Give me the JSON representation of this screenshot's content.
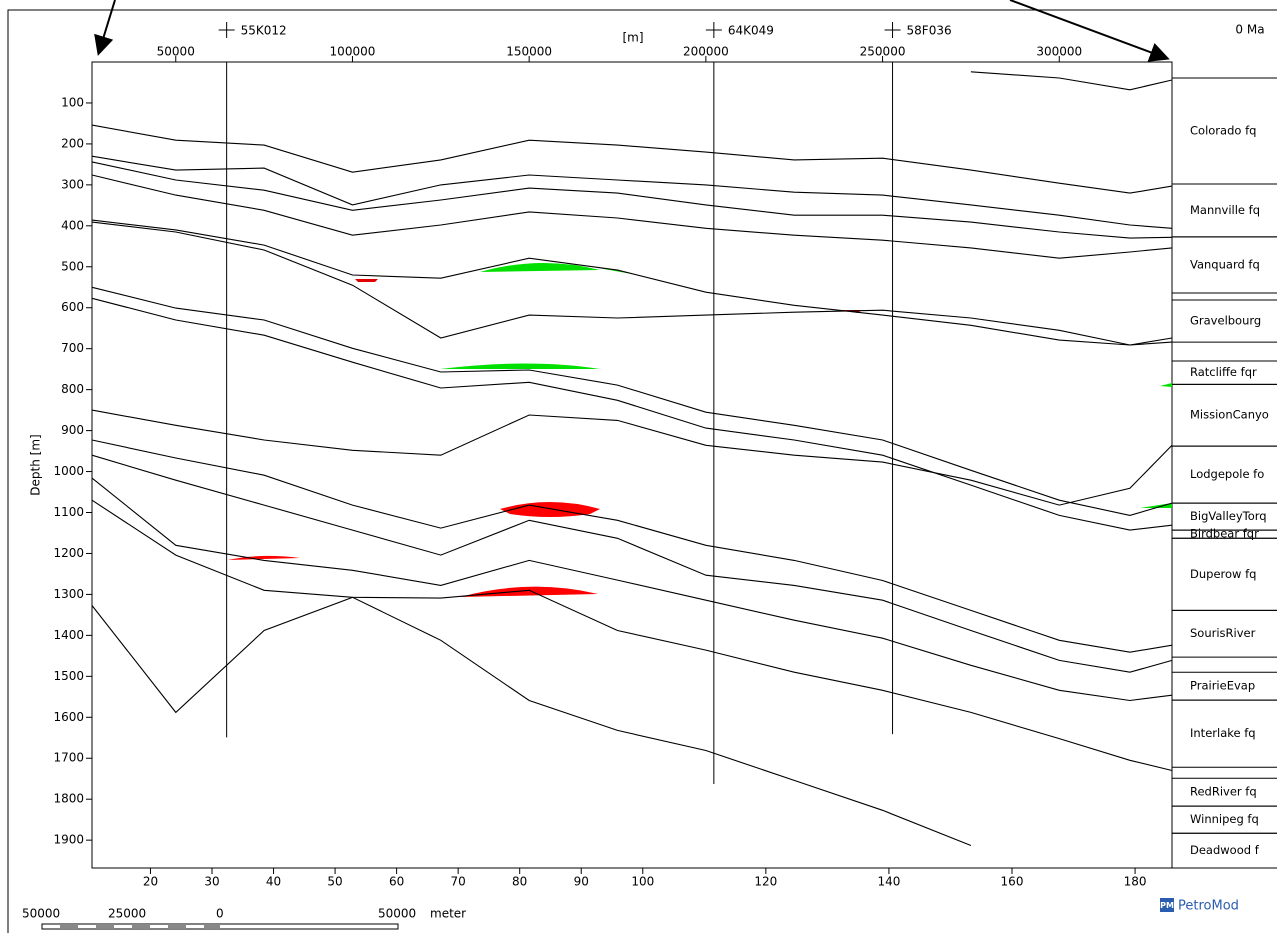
{
  "chart_data": {
    "type": "cross-section",
    "x_label": "[m]",
    "y_label": "Depth [m]",
    "age_label": "0 Ma",
    "xlim": [
      26300,
      331900
    ],
    "xticks": [
      50000,
      100000,
      150000,
      200000,
      250000,
      300000
    ],
    "x2lim": [
      10.5,
      186
    ],
    "x2ticks": [
      20,
      30,
      40,
      50,
      60,
      70,
      80,
      90,
      100,
      120,
      140,
      160,
      180
    ],
    "ylim": [
      0,
      1968
    ],
    "yticks": [
      100,
      200,
      300,
      400,
      500,
      600,
      700,
      800,
      900,
      1000,
      1100,
      1200,
      1300,
      1400,
      1500,
      1600,
      1700,
      1800,
      1900
    ],
    "wells": [
      {
        "name": "55K012",
        "x": 64400,
        "depth": 1649
      },
      {
        "name": "64K049",
        "x": 202260,
        "depth": 1763
      },
      {
        "name": "58F036",
        "x": 252825,
        "depth": 1641
      }
    ],
    "x": [
      26300,
      50000,
      75000,
      100000,
      125000,
      150000,
      175000,
      200000,
      225000,
      250000,
      275000,
      300000,
      320000,
      331900
    ],
    "horizons": [
      {
        "values": [
          null,
          null,
          null,
          null,
          null,
          null,
          null,
          null,
          null,
          null,
          24,
          39,
          68,
          44
        ]
      },
      {
        "values": [
          154,
          191,
          203,
          269,
          239,
          191,
          203,
          220,
          239,
          235,
          264,
          296,
          320,
          303
        ]
      },
      {
        "values": [
          230,
          264,
          259,
          349,
          300,
          276,
          288,
          300,
          318,
          325,
          349,
          374,
          398,
          406
        ]
      },
      {
        "values": [
          244,
          288,
          313,
          362,
          337,
          308,
          320,
          349,
          374,
          374,
          391,
          415,
          430,
          428
        ]
      },
      {
        "values": [
          276,
          325,
          362,
          423,
          398,
          366,
          381,
          406,
          423,
          435,
          454,
          479,
          464,
          454
        ]
      },
      {
        "values": [
          386,
          410,
          447,
          520,
          528,
          479,
          508,
          562,
          594,
          618,
          643,
          679,
          691,
          674
        ]
      },
      {
        "values": [
          391,
          415,
          459,
          545,
          674,
          618,
          625,
          618,
          611,
          606,
          625,
          655,
          691,
          684
        ]
      },
      {
        "values": [
          550,
          601,
          630,
          699,
          757,
          752,
          789,
          855,
          887,
          923,
          997,
          1070,
          1107,
          1077
        ]
      },
      {
        "values": [
          577,
          630,
          667,
          733,
          796,
          782,
          826,
          894,
          923,
          960,
          1033,
          1107,
          1143,
          1131
        ]
      },
      {
        "values": [
          850,
          887,
          923,
          948,
          960,
          862,
          875,
          936,
          960,
          977,
          1021,
          1082,
          1041,
          936
        ]
      },
      {
        "values": [
          923,
          967,
          1009,
          1082,
          1138,
          1082,
          1119,
          1180,
          1217,
          1266,
          1339,
          1412,
          1441,
          1424
        ]
      },
      {
        "values": [
          960,
          1021,
          1082,
          1143,
          1204,
          1119,
          1163,
          1253,
          1278,
          1314,
          1388,
          1461,
          1490,
          1461
        ]
      },
      {
        "values": [
          1016,
          1180,
          1217,
          1241,
          1278,
          1217,
          1265,
          1314,
          1363,
          1407,
          1473,
          1534,
          1559,
          1546
        ]
      },
      {
        "values": [
          1070,
          1204,
          1290,
          1307,
          1309,
          1290,
          1388,
          1436,
          1490,
          1534,
          1588,
          1652,
          1705,
          1730
        ]
      },
      {
        "values": [
          1327,
          1588,
          1388,
          1307,
          1412,
          1559,
          1632,
          1681,
          1754,
          1827,
          1913,
          null,
          null,
          null
        ]
      }
    ],
    "formations": [
      {
        "name": "Colorado fq",
        "top": 39,
        "base": 298
      },
      {
        "name": "Mannville fq",
        "top": 298,
        "base": 427
      },
      {
        "name": "Vanquard fq",
        "top": 427,
        "base": 564
      },
      {
        "name": "Gravelbourg",
        "top": 581,
        "base": 684
      },
      {
        "name": "Ratcliffe fqr",
        "top": 730,
        "base": 787
      },
      {
        "name": "MissionCanyo",
        "top": 787,
        "base": 938
      },
      {
        "name": "Lodgepole fo",
        "top": 938,
        "base": 1077
      },
      {
        "name": "BigValleyTorq",
        "top": 1077,
        "base": 1143
      },
      {
        "name": "Birdbear fqr",
        "top": 1143,
        "base": 1163
      },
      {
        "name": "Duperow fq",
        "top": 1163,
        "base": 1339
      },
      {
        "name": "SourisRiver",
        "top": 1339,
        "base": 1453
      },
      {
        "name": "PrairieEvap",
        "top": 1490,
        "base": 1558
      },
      {
        "name": "Interlake fq",
        "top": 1558,
        "base": 1722
      },
      {
        "name": "RedRiver fq",
        "top": 1749,
        "base": 1817
      },
      {
        "name": "Winnipeg fq",
        "top": 1817,
        "base": 1883
      },
      {
        "name": "Deadwood f",
        "top": 1883,
        "base": 1968
      }
    ],
    "scale_bar": {
      "labels": [
        "50000",
        "25000",
        "0",
        "50000"
      ],
      "unit": "meter"
    },
    "logo": {
      "mark": "PM",
      "text": "PetroMod"
    }
  }
}
